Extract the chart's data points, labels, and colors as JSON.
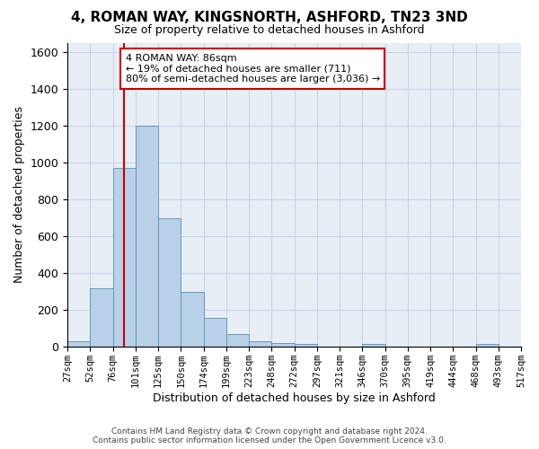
{
  "title_line1": "4, ROMAN WAY, KINGSNORTH, ASHFORD, TN23 3ND",
  "title_line2": "Size of property relative to detached houses in Ashford",
  "xlabel": "Distribution of detached houses by size in Ashford",
  "ylabel": "Number of detached properties",
  "footer_line1": "Contains HM Land Registry data © Crown copyright and database right 2024.",
  "footer_line2": "Contains public sector information licensed under the Open Government Licence v3.0.",
  "annotation_title": "4 ROMAN WAY: 86sqm",
  "annotation_line1": "← 19% of detached houses are smaller (711)",
  "annotation_line2": "80% of semi-detached houses are larger (3,036) →",
  "bar_values": [
    30,
    320,
    970,
    1200,
    700,
    300,
    155,
    70,
    30,
    20,
    15,
    0,
    0,
    15,
    0,
    0,
    0,
    0,
    15,
    0
  ],
  "categories": [
    "27sqm",
    "52sqm",
    "76sqm",
    "101sqm",
    "125sqm",
    "150sqm",
    "174sqm",
    "199sqm",
    "223sqm",
    "248sqm",
    "272sqm",
    "297sqm",
    "321sqm",
    "346sqm",
    "370sqm",
    "395sqm",
    "419sqm",
    "444sqm",
    "468sqm",
    "493sqm",
    "517sqm"
  ],
  "bar_color": "#b8d0e8",
  "bar_edge_color": "#6699bb",
  "grid_color": "#c8d4e4",
  "bg_color": "#e8eef6",
  "vline_x": 2.5,
  "vline_color": "#cc0000",
  "annotation_box_color": "#cc0000",
  "ylim": [
    0,
    1650
  ],
  "yticks": [
    0,
    200,
    400,
    600,
    800,
    1000,
    1200,
    1400,
    1600
  ]
}
